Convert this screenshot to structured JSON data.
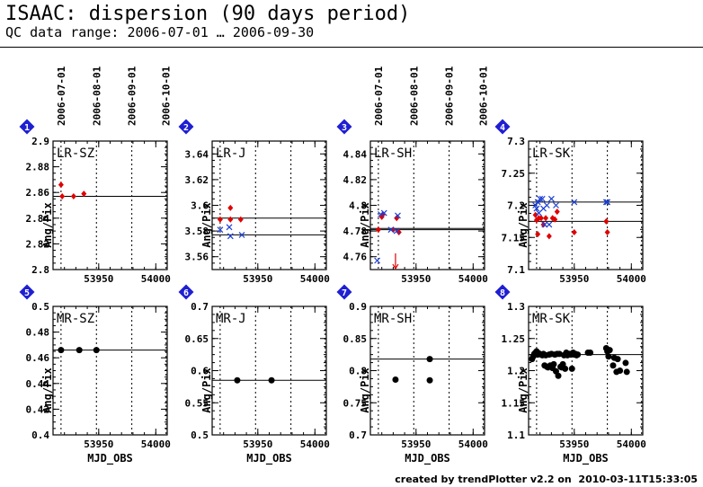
{
  "header": {
    "title": "ISAAC: dispersion (90 days period)",
    "subtitle": "QC data range: 2006-07-01 … 2006-09-30"
  },
  "footer": {
    "text": "created by trendPlotter v2.2 on  2010-03-11T15:33:05"
  },
  "top_date_ticks": [
    "2006-07-01",
    "2006-08-01",
    "2006-09-01",
    "2006-10-01"
  ],
  "colors": {
    "red": "#e00000",
    "blue": "#1a3fd6",
    "black": "#000000",
    "badge": "#1f1fd2",
    "grid": "#000000"
  },
  "chart_data": [
    {
      "id": 1,
      "title": "LR-SZ",
      "type": "scatter",
      "ylabel": "Ang/Pix",
      "xlabel": "",
      "xlim": [
        53910,
        54010
      ],
      "xticks": [
        53950,
        54000
      ],
      "xticklabels": [
        "53950",
        "54000"
      ],
      "ylim": [
        2.8,
        2.9
      ],
      "yticks": [
        2.8,
        2.82,
        2.84,
        2.86,
        2.88,
        2.9
      ],
      "yticklabels": [
        "2.8",
        "2.82",
        "2.84",
        "2.86",
        "2.88",
        "2.9"
      ],
      "date_grid": [
        53917,
        53948,
        53979,
        54009
      ],
      "hlines": [
        2.857
      ],
      "series": [
        {
          "marker": "diamond",
          "color": "red",
          "x": [
            53917,
            53918,
            53928,
            53937
          ],
          "y": [
            2.866,
            2.857,
            2.857,
            2.859
          ]
        }
      ]
    },
    {
      "id": 2,
      "title": "LR-J",
      "type": "scatter",
      "ylabel": "Ang/Pix",
      "xlabel": "",
      "xlim": [
        53910,
        54010
      ],
      "xticks": [
        53950,
        54000
      ],
      "xticklabels": [
        "53950",
        "54000"
      ],
      "ylim": [
        3.55,
        3.65
      ],
      "yticks": [
        3.56,
        3.58,
        3.6,
        3.62,
        3.64
      ],
      "yticklabels": [
        "3.56",
        "3.58",
        "3.6",
        "3.62",
        "3.64"
      ],
      "date_grid": [
        53917,
        53948,
        53979,
        54009
      ],
      "hlines": [
        3.59,
        3.577
      ],
      "series": [
        {
          "marker": "diamond",
          "color": "red",
          "x": [
            53917,
            53926,
            53926,
            53935
          ],
          "y": [
            3.589,
            3.598,
            3.589,
            3.589
          ]
        },
        {
          "marker": "cross",
          "color": "blue",
          "x": [
            53917,
            53925,
            53926,
            53936
          ],
          "y": [
            3.581,
            3.583,
            3.576,
            3.577
          ]
        }
      ]
    },
    {
      "id": 3,
      "title": "LR-SH",
      "type": "scatter",
      "ylabel": "Ang/Pix",
      "xlabel": "",
      "xlim": [
        53910,
        54010
      ],
      "xticks": [
        53950,
        54000
      ],
      "xticklabels": [
        "53950",
        "54000"
      ],
      "ylim": [
        4.75,
        4.85
      ],
      "yticks": [
        4.76,
        4.78,
        4.8,
        4.82,
        4.84
      ],
      "yticklabels": [
        "4.76",
        "4.78",
        "4.8",
        "4.82",
        "4.84"
      ],
      "date_grid": [
        53917,
        53948,
        53979,
        54009
      ],
      "hlines": [
        4.782,
        4.781
      ],
      "series": [
        {
          "marker": "diamond",
          "color": "red",
          "x": [
            53917,
            53920,
            53921,
            53930,
            53933,
            53935
          ],
          "y": [
            4.781,
            4.791,
            4.793,
            4.781,
            4.79,
            4.779
          ]
        },
        {
          "marker": "cross",
          "color": "blue",
          "x": [
            53916,
            53919,
            53922,
            53928,
            53934,
            53933
          ],
          "y": [
            4.757,
            4.793,
            4.794,
            4.781,
            4.792,
            4.78
          ]
        }
      ],
      "arrows": [
        {
          "x": 53932,
          "color": "red"
        }
      ]
    },
    {
      "id": 4,
      "title": "LR-SK",
      "type": "scatter",
      "ylabel": "Ang/Pix",
      "xlabel": "",
      "xlim": [
        53910,
        54010
      ],
      "xticks": [
        53950,
        54000
      ],
      "xticklabels": [
        "53950",
        "54000"
      ],
      "ylim": [
        7.1,
        7.3
      ],
      "yticks": [
        7.1,
        7.15,
        7.2,
        7.25,
        7.3
      ],
      "yticklabels": [
        "7.1",
        "7.15",
        "7.2",
        "7.25",
        "7.3"
      ],
      "date_grid": [
        53917,
        53948,
        53979,
        54009
      ],
      "hlines": [
        7.205,
        7.175
      ],
      "series": [
        {
          "marker": "diamond",
          "color": "red",
          "x": [
            53916,
            53917,
            53918,
            53919,
            53921,
            53923,
            53925,
            53928,
            53931,
            53933,
            53935,
            53950,
            53978,
            53979
          ],
          "y": [
            7.185,
            7.177,
            7.155,
            7.18,
            7.18,
            7.17,
            7.18,
            7.152,
            7.18,
            7.178,
            7.19,
            7.158,
            7.175,
            7.158
          ]
        },
        {
          "marker": "cross",
          "color": "blue",
          "x": [
            53916,
            53917,
            53918,
            53919,
            53920,
            53922,
            53923,
            53924,
            53926,
            53928,
            53930,
            53934,
            53950,
            53978,
            53979
          ],
          "y": [
            7.2,
            7.195,
            7.205,
            7.188,
            7.21,
            7.21,
            7.195,
            7.17,
            7.2,
            7.17,
            7.21,
            7.2,
            7.205,
            7.205,
            7.205
          ]
        }
      ]
    },
    {
      "id": 5,
      "title": "MR-SZ",
      "type": "scatter",
      "ylabel": "Ang/Pix",
      "xlabel": "MJD_OBS",
      "xlim": [
        53910,
        54010
      ],
      "xticks": [
        53950,
        54000
      ],
      "xticklabels": [
        "53950",
        "54000"
      ],
      "ylim": [
        0.4,
        0.5
      ],
      "yticks": [
        0.4,
        0.42,
        0.44,
        0.46,
        0.48,
        0.5
      ],
      "yticklabels": [
        "0.4",
        "0.42",
        "0.44",
        "0.46",
        "0.48",
        "0.5"
      ],
      "date_grid": [
        53917,
        53948,
        53979,
        54009
      ],
      "hlines": [
        0.466
      ],
      "series": [
        {
          "marker": "dot",
          "color": "black",
          "x": [
            53917,
            53933,
            53948
          ],
          "y": [
            0.466,
            0.466,
            0.466
          ]
        }
      ]
    },
    {
      "id": 6,
      "title": "MR-J",
      "type": "scatter",
      "ylabel": "Ang/Pix",
      "xlabel": "MJD_OBS",
      "xlim": [
        53910,
        54010
      ],
      "xticks": [
        53950,
        54000
      ],
      "xticklabels": [
        "53950",
        "54000"
      ],
      "ylim": [
        0.5,
        0.7
      ],
      "yticks": [
        0.5,
        0.55,
        0.6,
        0.65,
        0.7
      ],
      "yticklabels": [
        "0.5",
        "0.55",
        "0.6",
        "0.65",
        "0.7"
      ],
      "date_grid": [
        53917,
        53948,
        53979,
        54009
      ],
      "hlines": [
        0.585
      ],
      "series": [
        {
          "marker": "dot",
          "color": "black",
          "x": [
            53932,
            53962
          ],
          "y": [
            0.585,
            0.585
          ]
        }
      ]
    },
    {
      "id": 7,
      "title": "MR-SH",
      "type": "scatter",
      "ylabel": "Ang/Pix",
      "xlabel": "MJD_OBS",
      "xlim": [
        53910,
        54010
      ],
      "xticks": [
        53950,
        54000
      ],
      "xticklabels": [
        "53950",
        "54000"
      ],
      "ylim": [
        0.7,
        0.9
      ],
      "yticks": [
        0.7,
        0.75,
        0.8,
        0.85,
        0.9
      ],
      "yticklabels": [
        "0.7",
        "0.75",
        "0.8",
        "0.85",
        "0.9"
      ],
      "date_grid": [
        53917,
        53948,
        53979,
        54009
      ],
      "hlines": [
        0.818
      ],
      "series": [
        {
          "marker": "dot",
          "color": "black",
          "x": [
            53932,
            53962,
            53962
          ],
          "y": [
            0.786,
            0.818,
            0.785
          ]
        }
      ]
    },
    {
      "id": 8,
      "title": "MR-SK",
      "type": "scatter",
      "ylabel": "Ang/Pix",
      "xlabel": "MJD_OBS",
      "xlim": [
        53910,
        54010
      ],
      "xticks": [
        53950,
        54000
      ],
      "xticklabels": [
        "53950",
        "54000"
      ],
      "ylim": [
        1.1,
        1.3
      ],
      "yticks": [
        1.1,
        1.15,
        1.2,
        1.25,
        1.3
      ],
      "yticklabels": [
        "1.1",
        "1.15",
        "1.2",
        "1.25",
        "1.3"
      ],
      "date_grid": [
        53917,
        53948,
        53979,
        54009
      ],
      "hlines": [
        1.225
      ],
      "series": [
        {
          "marker": "dot",
          "color": "black",
          "x": [
            53913,
            53914,
            53915,
            53916,
            53917,
            53918,
            53919,
            53921,
            53922,
            53923,
            53924,
            53925,
            53926,
            53927,
            53928,
            53929,
            53930,
            53931,
            53932,
            53933,
            53934,
            53935,
            53936,
            53937,
            53938,
            53939,
            53940,
            53941,
            53942,
            53943,
            53944,
            53945,
            53946,
            53947,
            53948,
            53949,
            53950,
            53951,
            53952,
            53953,
            53962,
            53964,
            53978,
            53979,
            53980,
            53981,
            53984,
            53985,
            53987,
            53988,
            53990,
            53995,
            53996
          ],
          "y": [
            1.218,
            1.222,
            1.226,
            1.228,
            1.23,
            1.225,
            1.227,
            1.225,
            1.224,
            1.226,
            1.208,
            1.224,
            1.206,
            1.205,
            1.225,
            1.208,
            1.226,
            1.204,
            1.21,
            1.225,
            1.199,
            1.226,
            1.192,
            1.226,
            1.206,
            1.205,
            1.21,
            1.224,
            1.203,
            1.228,
            1.224,
            1.226,
            1.226,
            1.225,
            1.203,
            1.228,
            1.225,
            1.226,
            1.224,
            1.225,
            1.228,
            1.228,
            1.235,
            1.23,
            1.222,
            1.232,
            1.208,
            1.22,
            1.198,
            1.218,
            1.2,
            1.212,
            1.198
          ]
        }
      ]
    }
  ]
}
